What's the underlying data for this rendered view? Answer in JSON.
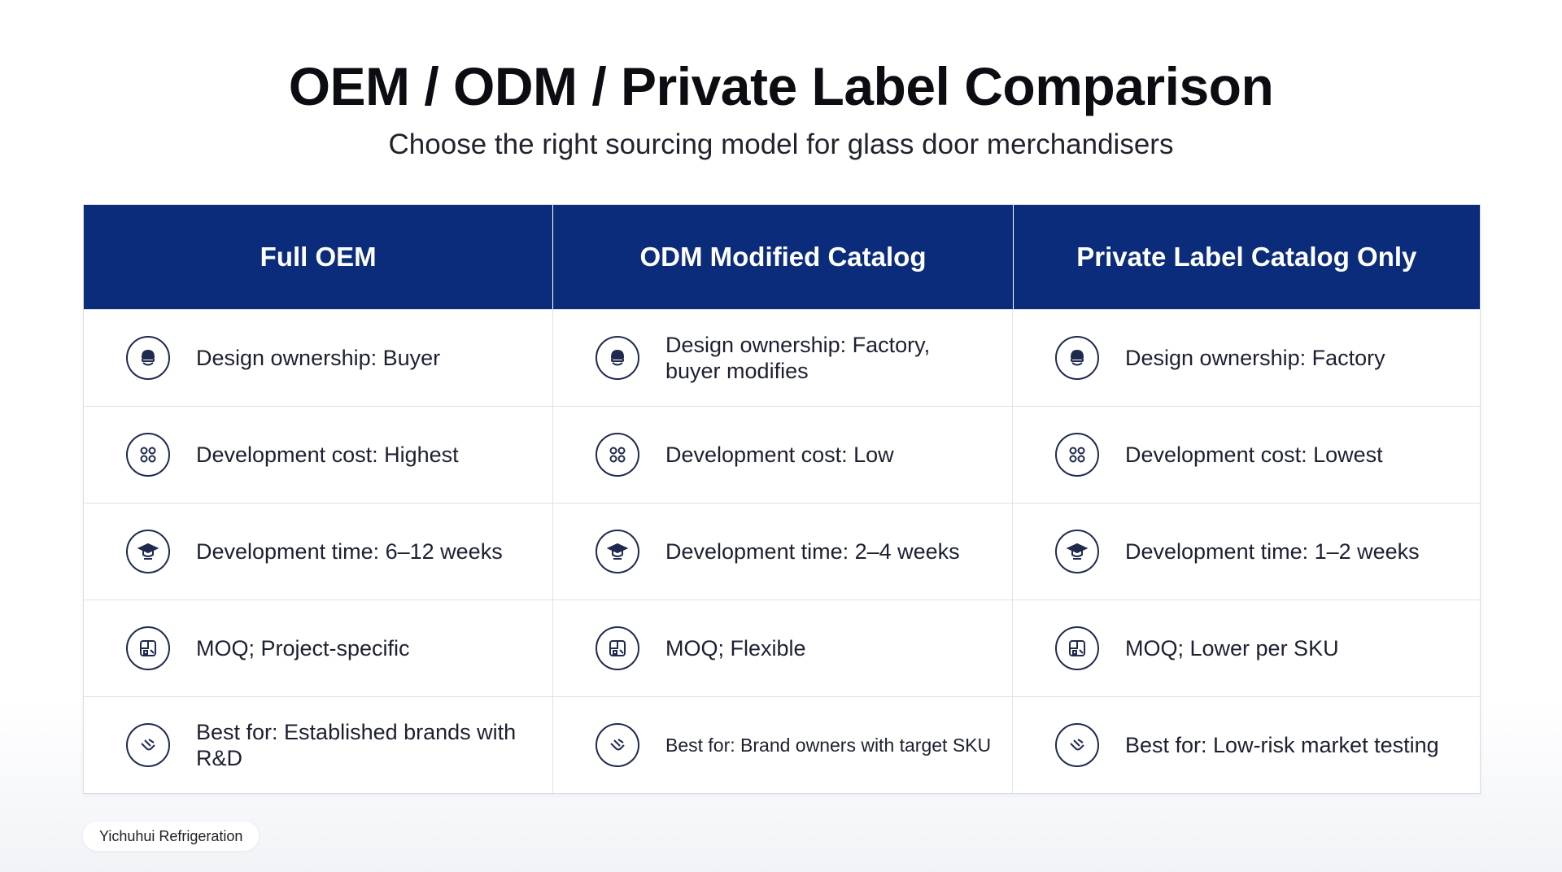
{
  "header": {
    "title": "OEM / ODM / Private Label Comparison",
    "subtitle": "Choose the right sourcing model for glass door merchandisers"
  },
  "table": {
    "columns": [
      "Full OEM",
      "ODM Modified Catalog",
      "Private Label Catalog Only"
    ],
    "rows": [
      {
        "icon": "cap-icon",
        "cells": [
          "Design ownership: Buyer",
          "Design ownership: Factory, buyer modifies",
          "Design ownership: Factory"
        ]
      },
      {
        "icon": "molecule-icon",
        "cells": [
          "Development cost: Highest",
          "Development cost: Low",
          "Development cost: Lowest"
        ]
      },
      {
        "icon": "graduation-cap-icon",
        "cells": [
          "Development time: 6–12 weeks",
          "Development time: 2–4 weeks",
          "Development time: 1–2 weeks"
        ]
      },
      {
        "icon": "grid-box-icon",
        "cells": [
          "MOQ; Project-specific",
          "MOQ; Flexible",
          "MOQ; Lower per SKU"
        ]
      },
      {
        "icon": "handshake-icon",
        "cells": [
          "Best for: Established brands with R&D",
          "Best for: Brand owners with target SKU",
          "Best for: Low-risk market testing"
        ]
      }
    ]
  },
  "footer": {
    "brand": "Yichuhui Refrigeration"
  },
  "colors": {
    "header_bg": "#0b2c7a",
    "icon_stroke": "#1f2a4e"
  }
}
